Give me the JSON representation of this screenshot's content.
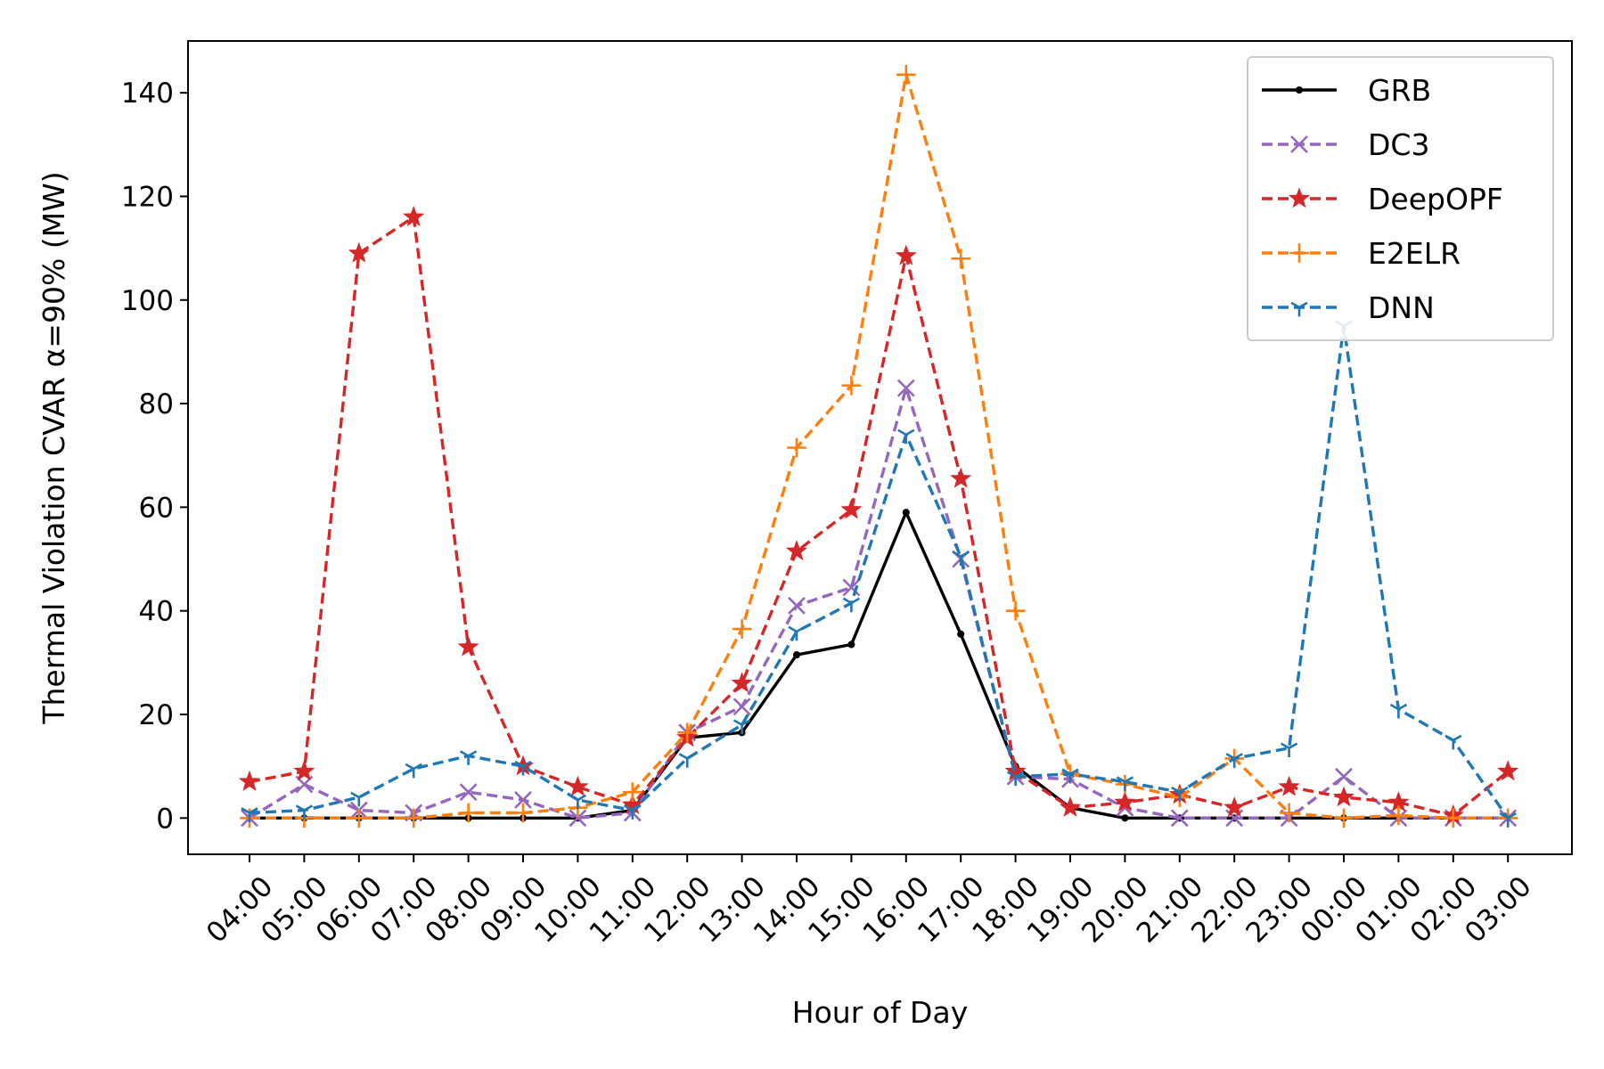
{
  "chart_data": {
    "type": "line",
    "title": "",
    "xlabel": "Hour of Day",
    "ylabel": "Thermal Violation CVAR α=90% (MW)",
    "ylim": [
      -7,
      150
    ],
    "yticks": [
      0,
      20,
      40,
      60,
      80,
      100,
      120,
      140
    ],
    "grid": false,
    "legend_position": "top-right",
    "categories": [
      "04:00",
      "05:00",
      "06:00",
      "07:00",
      "08:00",
      "09:00",
      "10:00",
      "11:00",
      "12:00",
      "13:00",
      "14:00",
      "15:00",
      "16:00",
      "17:00",
      "18:00",
      "19:00",
      "20:00",
      "21:00",
      "22:00",
      "23:00",
      "00:00",
      "01:00",
      "02:00",
      "03:00"
    ],
    "series": [
      {
        "name": "GRB",
        "color": "#000000",
        "marker": "dot",
        "dash": "solid",
        "values": [
          0,
          0,
          0,
          0,
          0,
          0,
          0,
          1.5,
          15.5,
          16.5,
          31.5,
          33.5,
          59,
          35.5,
          10,
          2,
          0,
          0,
          0,
          0,
          0,
          0,
          0,
          0
        ]
      },
      {
        "name": "DC3",
        "color": "#9467bd",
        "marker": "x",
        "dash": "dashed",
        "values": [
          0,
          6.5,
          1.5,
          1,
          5,
          3.5,
          0,
          1,
          16.5,
          21.5,
          41,
          44.5,
          83,
          50,
          8,
          7.5,
          2,
          0,
          0,
          0,
          8,
          0,
          0,
          0
        ]
      },
      {
        "name": "DeepOPF",
        "color": "#d62728",
        "marker": "star",
        "dash": "dashed",
        "values": [
          7,
          9,
          109,
          116,
          33,
          10,
          6,
          2.5,
          15.5,
          26,
          51.5,
          59.5,
          108.5,
          65.5,
          9,
          2,
          3,
          4.5,
          2,
          6,
          4,
          3,
          0.5,
          9
        ]
      },
      {
        "name": "E2ELR",
        "color": "#ff7f0e",
        "marker": "plus",
        "dash": "dashed",
        "values": [
          0,
          0,
          0,
          0,
          1,
          1,
          2,
          5,
          16.5,
          36.5,
          71.5,
          83.5,
          143.5,
          108,
          40,
          8.5,
          6.5,
          4,
          11.5,
          1,
          0,
          0.5,
          0,
          0
        ]
      },
      {
        "name": "DNN",
        "color": "#1f77b4",
        "marker": "tri",
        "dash": "dashed",
        "values": [
          1,
          1.5,
          4,
          9.5,
          12,
          10,
          3.5,
          1.5,
          11.5,
          18,
          36,
          41.5,
          74,
          50.5,
          8,
          8.5,
          7,
          5,
          11.5,
          13.5,
          95,
          21,
          15,
          0
        ]
      }
    ]
  }
}
